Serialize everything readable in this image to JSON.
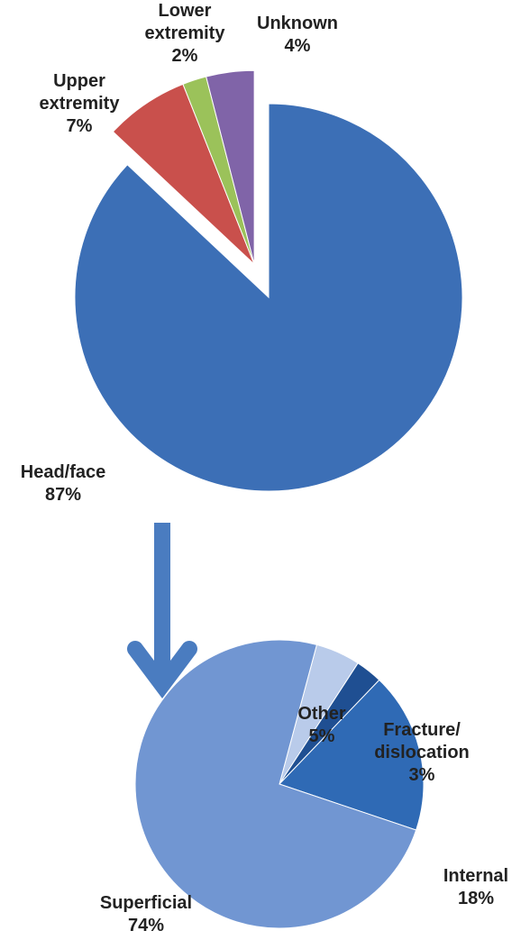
{
  "chart_data": [
    {
      "type": "pie",
      "categories": [
        "Head/face",
        "Upper extremity",
        "Lower extremity",
        "Unknown"
      ],
      "values": [
        87,
        7,
        2,
        4
      ],
      "value_labels": [
        "87%",
        "7%",
        "2%",
        "4%"
      ],
      "colors": [
        "#3c6fb6",
        "#c9504c",
        "#9bc25a",
        "#8064a8"
      ]
    },
    {
      "type": "pie",
      "categories": [
        "Other",
        "Fracture/ dislocation",
        "Internal",
        "Superficial"
      ],
      "values": [
        5,
        3,
        18,
        74
      ],
      "value_labels": [
        "5%",
        "3%",
        "18%",
        "74%"
      ],
      "colors": [
        "#b9cbea",
        "#1f4f92",
        "#2f6ab5",
        "#7196d2"
      ]
    }
  ]
}
